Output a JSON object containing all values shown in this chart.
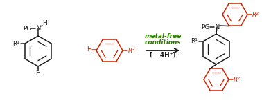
{
  "bg_color": "#ffffff",
  "black": "#1a1a1a",
  "red": "#cc2200",
  "green": "#2d7a00",
  "fig_width": 3.78,
  "fig_height": 1.49,
  "dpi": 100,
  "label_metal_free": "metal-free",
  "label_conditions": "conditions",
  "label_proton": "[− 4H⁺]",
  "label_PG": "PG",
  "label_N": "N",
  "label_H_amine": "H",
  "label_R1": "R¹",
  "label_H_bottom": "H",
  "label_R2": "R²",
  "label_H_red": "H"
}
